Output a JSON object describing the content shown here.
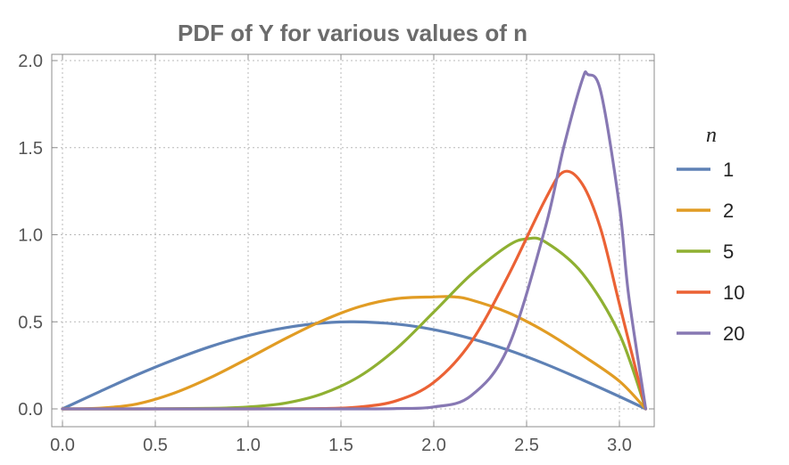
{
  "chart_data": {
    "type": "line",
    "title": "PDF of Y for various values of n",
    "xlabel": "",
    "ylabel": "",
    "xlim": [
      0,
      3.1416
    ],
    "ylim": [
      0,
      2.0
    ],
    "xticks": [
      0.0,
      0.5,
      1.0,
      1.5,
      2.0,
      2.5,
      3.0
    ],
    "xtick_labels": [
      "0.0",
      "0.5",
      "1.0",
      "1.5",
      "2.0",
      "2.5",
      "3.0"
    ],
    "yticks": [
      0.0,
      0.5,
      1.0,
      1.5,
      2.0
    ],
    "ytick_labels": [
      "0.0",
      "0.5",
      "1.0",
      "1.5",
      "2.0"
    ],
    "grid": true,
    "legend": {
      "title": "n",
      "placement": "right"
    },
    "series": [
      {
        "name": "1",
        "color": "#5e81b5",
        "x": [
          0,
          0.2,
          0.4,
          0.6,
          0.8,
          1.0,
          1.2,
          1.4,
          1.571,
          1.8,
          2.0,
          2.2,
          2.4,
          2.6,
          2.8,
          3.0,
          3.1416
        ],
        "y": [
          0,
          0.099,
          0.195,
          0.282,
          0.359,
          0.421,
          0.466,
          0.493,
          0.5,
          0.487,
          0.455,
          0.404,
          0.338,
          0.258,
          0.167,
          0.071,
          0
        ]
      },
      {
        "name": "2",
        "color": "#e19c24",
        "x": [
          0,
          0.2,
          0.4,
          0.6,
          0.8,
          1.0,
          1.2,
          1.4,
          1.6,
          1.8,
          2.0,
          2.1,
          2.2,
          2.4,
          2.6,
          2.8,
          3.0,
          3.1416
        ],
        "y": [
          0,
          0.004,
          0.028,
          0.09,
          0.181,
          0.29,
          0.403,
          0.506,
          0.587,
          0.633,
          0.643,
          0.644,
          0.626,
          0.553,
          0.444,
          0.308,
          0.159,
          0
        ]
      },
      {
        "name": "5",
        "color": "#8fb032",
        "x": [
          0,
          0.4,
          0.8,
          1.0,
          1.2,
          1.4,
          1.6,
          1.8,
          2.0,
          2.2,
          2.4,
          2.5,
          2.6,
          2.8,
          3.0,
          3.1416
        ],
        "y": [
          0,
          0.0,
          0.003,
          0.011,
          0.033,
          0.087,
          0.187,
          0.347,
          0.556,
          0.77,
          0.937,
          0.976,
          0.959,
          0.779,
          0.43,
          0
        ]
      },
      {
        "name": "10",
        "color": "#eb6235",
        "x": [
          0,
          1.0,
          1.4,
          1.6,
          1.8,
          2.0,
          2.2,
          2.4,
          2.6,
          2.7,
          2.8,
          2.9,
          3.0,
          3.1416
        ],
        "y": [
          0,
          0.0,
          0.002,
          0.011,
          0.047,
          0.152,
          0.382,
          0.763,
          1.201,
          1.361,
          1.291,
          1.03,
          0.602,
          0
        ]
      },
      {
        "name": "20",
        "color": "#8778b3",
        "x": [
          0,
          1.2,
          1.6,
          1.8,
          2.0,
          2.2,
          2.4,
          2.6,
          2.7,
          2.8,
          2.83,
          2.9,
          3.0,
          3.05,
          3.1416
        ],
        "y": [
          0,
          0.0,
          0.0,
          0.002,
          0.011,
          0.075,
          0.352,
          1.038,
          1.503,
          1.89,
          1.92,
          1.82,
          1.165,
          0.65,
          0
        ]
      }
    ]
  }
}
